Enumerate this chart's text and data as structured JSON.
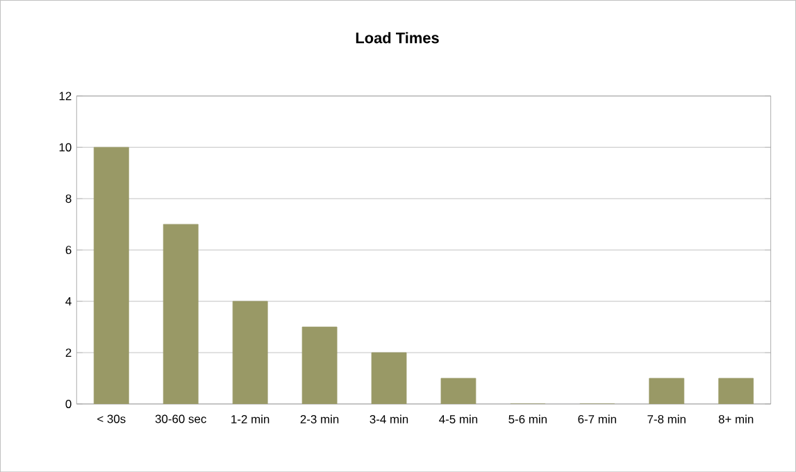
{
  "chart_data": {
    "type": "bar",
    "title": "Load Times",
    "categories": [
      "< 30s",
      "30-60 sec",
      "1-2 min",
      "2-3 min",
      "3-4 min",
      "4-5 min",
      "5-6 min",
      "6-7 min",
      "7-8 min",
      "8+ min"
    ],
    "values": [
      10,
      7,
      4,
      3,
      2,
      1,
      0,
      0,
      1,
      1
    ],
    "color": "#999966",
    "ylim": [
      0,
      12
    ],
    "yticks": [
      0,
      2,
      4,
      6,
      8,
      10,
      12
    ],
    "grid": "y"
  }
}
